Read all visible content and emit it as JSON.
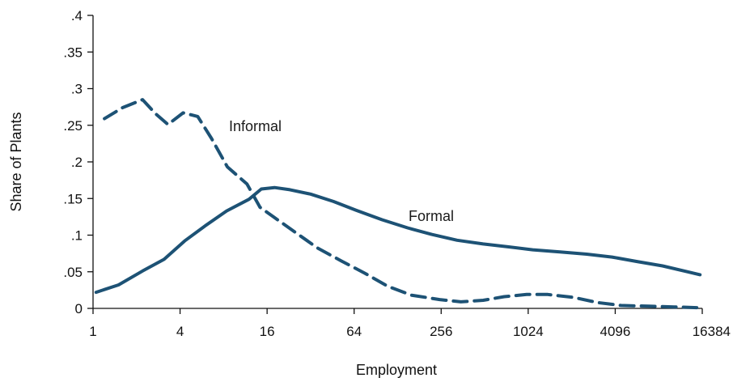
{
  "chart_data": {
    "type": "line",
    "title": "",
    "xlabel": "Employment",
    "ylabel": "Share of Plants",
    "x_scale": "log2",
    "xlim": [
      1,
      16384
    ],
    "ylim": [
      0,
      0.4
    ],
    "x_ticks": [
      {
        "value": 1,
        "label": "1"
      },
      {
        "value": 4,
        "label": "4"
      },
      {
        "value": 16,
        "label": "16"
      },
      {
        "value": 64,
        "label": "64"
      },
      {
        "value": 256,
        "label": "256"
      },
      {
        "value": 1024,
        "label": "1024"
      },
      {
        "value": 4096,
        "label": "4096"
      },
      {
        "value": 16384,
        "label": "16384"
      }
    ],
    "y_ticks": [
      {
        "value": 0,
        "label": "0"
      },
      {
        "value": 0.05,
        "label": ".05"
      },
      {
        "value": 0.1,
        "label": ".1"
      },
      {
        "value": 0.15,
        "label": ".15"
      },
      {
        "value": 0.2,
        "label": ".2"
      },
      {
        "value": 0.25,
        "label": ".25"
      },
      {
        "value": 0.3,
        "label": ".3"
      },
      {
        "value": 0.35,
        "label": ".35"
      },
      {
        "value": 0.4,
        "label": ".4"
      }
    ],
    "grid": false,
    "color": "#1d5275",
    "series": [
      {
        "name": "Informal",
        "style": "dashed",
        "points": [
          [
            1.2,
            0.259
          ],
          [
            1.6,
            0.274
          ],
          [
            2.2,
            0.285
          ],
          [
            2.7,
            0.266
          ],
          [
            3.3,
            0.251
          ],
          [
            4.2,
            0.267
          ],
          [
            5.3,
            0.262
          ],
          [
            6.6,
            0.232
          ],
          [
            8.5,
            0.193
          ],
          [
            11.6,
            0.17
          ],
          [
            14.3,
            0.138
          ],
          [
            17.7,
            0.125
          ],
          [
            25,
            0.104
          ],
          [
            36,
            0.082
          ],
          [
            52,
            0.065
          ],
          [
            76,
            0.048
          ],
          [
            110,
            0.03
          ],
          [
            160,
            0.018
          ],
          [
            250,
            0.012
          ],
          [
            350,
            0.009
          ],
          [
            500,
            0.011
          ],
          [
            700,
            0.016
          ],
          [
            1000,
            0.019
          ],
          [
            1400,
            0.019
          ],
          [
            2100,
            0.015
          ],
          [
            3100,
            0.008
          ],
          [
            4500,
            0.004
          ],
          [
            7000,
            0.003
          ],
          [
            10500,
            0.002
          ],
          [
            15000,
            0.001
          ]
        ]
      },
      {
        "name": "Formal",
        "style": "solid",
        "points": [
          [
            1.05,
            0.022
          ],
          [
            1.5,
            0.032
          ],
          [
            2.2,
            0.051
          ],
          [
            3.1,
            0.067
          ],
          [
            4.3,
            0.092
          ],
          [
            6.0,
            0.113
          ],
          [
            8.4,
            0.133
          ],
          [
            12,
            0.149
          ],
          [
            14.6,
            0.163
          ],
          [
            18,
            0.165
          ],
          [
            23,
            0.162
          ],
          [
            32,
            0.156
          ],
          [
            46,
            0.146
          ],
          [
            66,
            0.134
          ],
          [
            100,
            0.121
          ],
          [
            150,
            0.11
          ],
          [
            220,
            0.101
          ],
          [
            330,
            0.093
          ],
          [
            500,
            0.088
          ],
          [
            750,
            0.084
          ],
          [
            1100,
            0.08
          ],
          [
            1700,
            0.077
          ],
          [
            2600,
            0.074
          ],
          [
            3900,
            0.07
          ],
          [
            5800,
            0.064
          ],
          [
            8700,
            0.058
          ],
          [
            13000,
            0.05
          ],
          [
            15800,
            0.046
          ]
        ]
      }
    ],
    "annotations": [
      {
        "text": "Informal",
        "series": "Informal"
      },
      {
        "text": "Formal",
        "series": "Formal"
      }
    ]
  }
}
